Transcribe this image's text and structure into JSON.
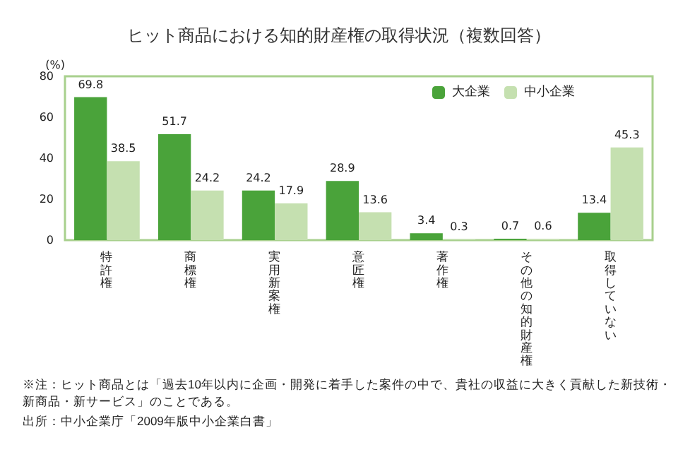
{
  "chart_data": {
    "type": "bar",
    "title": "ヒット商品における知的財産権の取得状況（複数回答）",
    "ylabel": "(%)",
    "categories": [
      "特許権",
      "商標権",
      "実用新案権",
      "意匠権",
      "著作権",
      "その他の知的財産権",
      "取得していない"
    ],
    "series": [
      {
        "name": "大企業",
        "color": "#4aa33a",
        "values": [
          69.8,
          51.7,
          24.2,
          28.9,
          3.4,
          0.7,
          13.4
        ]
      },
      {
        "name": "中小企業",
        "color": "#c5e0b0",
        "values": [
          38.5,
          24.2,
          17.9,
          13.6,
          0.3,
          0.6,
          45.3
        ]
      }
    ],
    "ylim": [
      0,
      80
    ],
    "yticks": [
      0,
      20,
      40,
      60,
      80
    ],
    "grid": false,
    "legend": "top right",
    "data_labels": true,
    "annotations": [
      "※注：ヒット商品とは「過去10年以内に企画・開発に着手した案件の中で、貴社の収益に大きく貢献した新技術・新商品・新サービス」のことである。",
      "出所：中小企業庁「2009年版中小企業白書」"
    ]
  }
}
